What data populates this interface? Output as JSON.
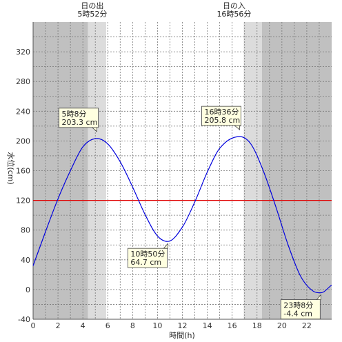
{
  "chart_data": {
    "type": "line",
    "xlabel": "時間(h)",
    "ylabel": "水位(cm)",
    "xlim": [
      0,
      24
    ],
    "ylim": [
      -40,
      360
    ],
    "x_ticks": [
      0,
      2,
      4,
      6,
      8,
      10,
      12,
      14,
      16,
      18,
      20,
      22
    ],
    "y_ticks": [
      -40,
      0,
      40,
      80,
      120,
      160,
      200,
      240,
      280,
      320
    ],
    "grid": true,
    "reference_line": {
      "y": 120,
      "color": "#e00000"
    },
    "series": [
      {
        "color": "#0000dd",
        "x": [
          0,
          1,
          2,
          3,
          4,
          5.13,
          6,
          7,
          8,
          9,
          10,
          10.83,
          12,
          13,
          14,
          15,
          16.6,
          17.5,
          18.5,
          19.5,
          20.5,
          21.5,
          22.5,
          23.13,
          24
        ],
        "y": [
          32,
          78,
          122,
          160,
          192,
          203.3,
          196,
          172,
          138,
          101,
          72,
          64.7,
          84,
          118,
          158,
          190,
          205.8,
          196,
          160,
          112,
          60,
          18,
          -2,
          -4.4,
          6
        ]
      }
    ],
    "extremes": [
      {
        "time": "5時8分",
        "level": "203.3 cm",
        "x": 5.13,
        "y": 203.3,
        "kind": "high"
      },
      {
        "time": "10時50分",
        "level": "64.7 cm",
        "x": 10.83,
        "y": 64.7,
        "kind": "low"
      },
      {
        "time": "16時36分",
        "level": "205.8 cm",
        "x": 16.6,
        "y": 205.8,
        "kind": "high"
      },
      {
        "time": "23時8分",
        "level": "-4.4 cm",
        "x": 23.13,
        "y": -4.4,
        "kind": "low"
      }
    ],
    "sunrise": {
      "title": "日の出",
      "time": "5時52分",
      "x": 5.87
    },
    "sunset": {
      "title": "日の入",
      "time": "16時56分",
      "x": 16.93
    },
    "twilight": [
      [
        4.4,
        5.87
      ],
      [
        16.93,
        18.4
      ]
    ],
    "colors": {
      "night": "#c0c0c0",
      "twilight": "#dcdcdc",
      "day": "#ffffff",
      "grid": "#777777"
    }
  }
}
